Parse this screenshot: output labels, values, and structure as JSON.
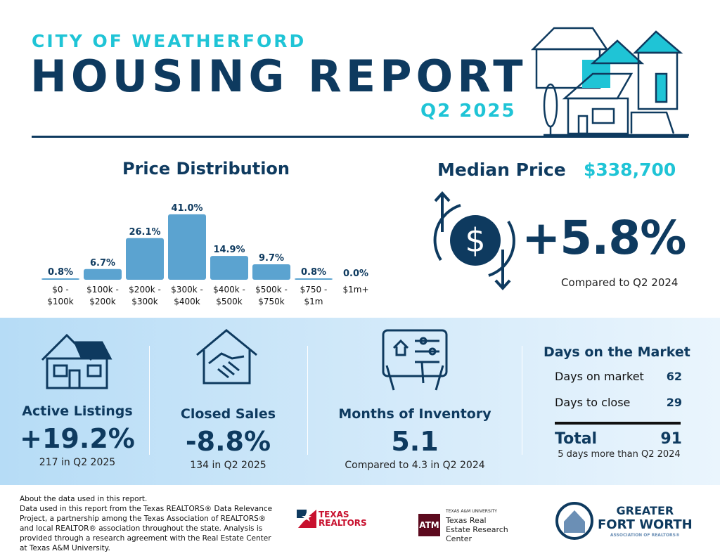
{
  "header": {
    "city": "CITY OF WEATHERFORD",
    "title": "HOUSING REPORT",
    "quarter": "Q2 2025"
  },
  "colors": {
    "navy": "#0e3a5f",
    "teal": "#1fc4d6",
    "bar": "#5ba3d0"
  },
  "chart_data": {
    "type": "bar",
    "title": "Price Distribution",
    "categories": [
      "$0 - $100k",
      "$100k - $200k",
      "$200k - $300k",
      "$300k - $400k",
      "$400k - $500k",
      "$500k - $750k",
      "$750 - $1m",
      "$1m+"
    ],
    "category_lines": [
      [
        "$0 -",
        "$100k"
      ],
      [
        "$100k -",
        "$200k"
      ],
      [
        "$200k -",
        "$300k"
      ],
      [
        "$300k -",
        "$400k"
      ],
      [
        "$400k -",
        "$500k"
      ],
      [
        "$500k -",
        "$750k"
      ],
      [
        "$750 -",
        "$1m"
      ],
      [
        "$1m+",
        ""
      ]
    ],
    "values": [
      0.8,
      6.7,
      26.1,
      41.0,
      14.9,
      9.7,
      0.8,
      0.0
    ],
    "labels": [
      "0.8%",
      "6.7%",
      "26.1%",
      "41.0%",
      "14.9%",
      "9.7%",
      "0.8%",
      "0.0%"
    ],
    "unit": "%",
    "grid": false
  },
  "median": {
    "label": "Median Price",
    "value": "$338,700",
    "change": "+5.8%",
    "compare": "Compared to Q2 2024",
    "icon": "dollar-cycle-icon"
  },
  "stats": [
    {
      "label": "Active Listings",
      "value": "+19.2%",
      "sub": "217 in Q2 2025",
      "icon": "house-icon"
    },
    {
      "label": "Closed Sales",
      "value": "-8.8%",
      "sub": "134 in Q2 2025",
      "icon": "handshake-icon"
    },
    {
      "label": "Months of Inventory",
      "value": "5.1",
      "sub": "Compared to 4.3 in Q2 2024",
      "icon": "tablet-icon"
    }
  ],
  "dom": {
    "title": "Days on the Market",
    "rows": [
      {
        "label": "Days on market",
        "value": "62"
      },
      {
        "label": "Days to close",
        "value": "29"
      }
    ],
    "total_label": "Total",
    "total_value": "91",
    "note": "5 days more than Q2 2024"
  },
  "footer": {
    "lines": [
      "About the data used in this report.",
      "Data used in this report from the Texas REALTORS® Data Relevance Project, a partnership among the Texas Association of REALTORS® and local REALTOR® association throughout the state. Analysis is provided through a research agreement with the Real Estate Center at Texas A&M University."
    ],
    "logos": {
      "texas_realtors": "TEXAS REALTORS",
      "tamu_small": "TEXAS A&M UNIVERSITY",
      "tamu": "Texas Real Estate Research Center",
      "gfw1": "GREATER",
      "gfw2": "FORT WORTH",
      "gfw3": "ASSOCIATION OF REALTORS®"
    }
  }
}
